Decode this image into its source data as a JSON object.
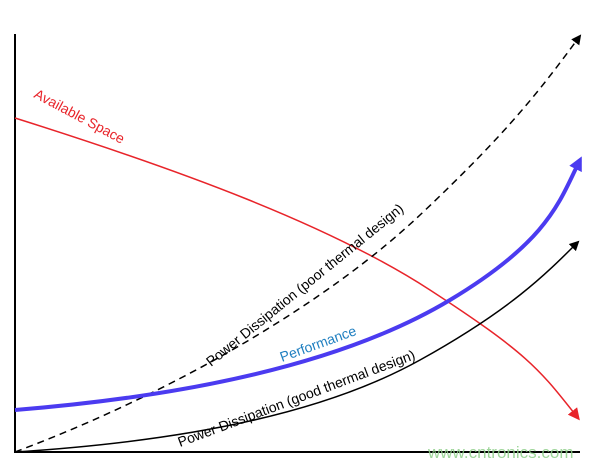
{
  "labels": {
    "available_space": "Available Space",
    "poor_thermal": "Power Dissipation (poor thermal design)",
    "performance": "Performance",
    "good_thermal": "Power Dissipation (good thermal design)"
  },
  "watermark": "www.cntronics.com",
  "colors": {
    "available_space": "#e8242a",
    "performance": "#4b3bf0",
    "performance_label": "#1f7fc0",
    "power": "#000000",
    "watermark": "#8fcf8a"
  }
}
